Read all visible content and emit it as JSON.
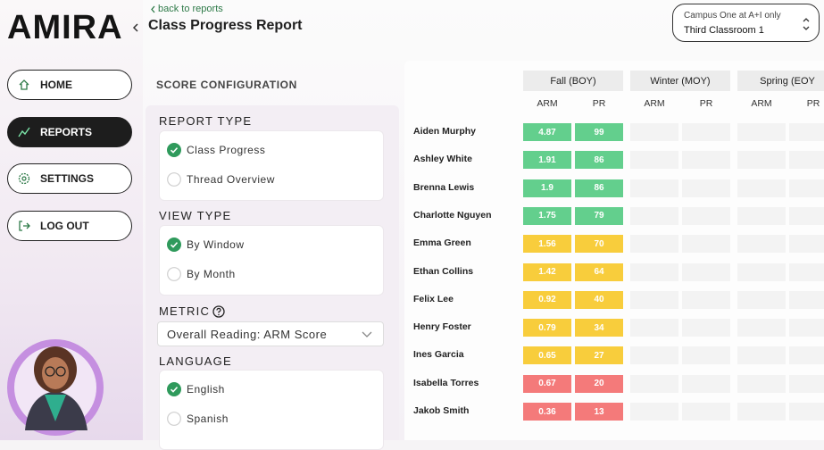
{
  "brand": "AMIRA",
  "nav": [
    {
      "label": "HOME",
      "active": false
    },
    {
      "label": "REPORTS",
      "active": true
    },
    {
      "label": "SETTINGS",
      "active": false
    },
    {
      "label": "LOG OUT",
      "active": false
    }
  ],
  "header": {
    "back": "back to reports",
    "title": "Class Progress Report"
  },
  "campus": {
    "label": "Campus One at A+I only",
    "classroom": "Third Classroom 1"
  },
  "config": {
    "heading": "SCORE CONFIGURATION",
    "report_type": {
      "label": "REPORT TYPE",
      "options": [
        {
          "text": "Class Progress",
          "checked": true
        },
        {
          "text": "Thread Overview",
          "checked": false
        }
      ]
    },
    "view_type": {
      "label": "VIEW TYPE",
      "options": [
        {
          "text": "By Window",
          "checked": true
        },
        {
          "text": "By Month",
          "checked": false
        }
      ]
    },
    "metric": {
      "label": "METRIC",
      "selected": "Overall Reading: ARM Score"
    },
    "language": {
      "label": "LANGUAGE",
      "options": [
        {
          "text": "English",
          "checked": true
        },
        {
          "text": "Spanish",
          "checked": false
        }
      ]
    }
  },
  "table": {
    "periods": [
      "Fall (BOY)",
      "Winter (MOY)",
      "Spring (EOY"
    ],
    "columns": [
      "ARM",
      "PR"
    ],
    "rows": [
      {
        "name": "Aiden Murphy",
        "arm": 4.87,
        "pr": 99,
        "color": "#63cf8d"
      },
      {
        "name": "Ashley White",
        "arm": 1.91,
        "pr": 86,
        "color": "#63cf8d"
      },
      {
        "name": "Brenna Lewis",
        "arm": 1.9,
        "pr": 86,
        "color": "#63cf8d"
      },
      {
        "name": "Charlotte Nguyen",
        "arm": 1.75,
        "pr": 79,
        "color": "#63cf8d"
      },
      {
        "name": "Emma Green",
        "arm": 1.56,
        "pr": 70,
        "color": "#f8cd3c"
      },
      {
        "name": "Ethan Collins",
        "arm": 1.42,
        "pr": 64,
        "color": "#f8cd3c"
      },
      {
        "name": "Felix Lee",
        "arm": 0.92,
        "pr": 40,
        "color": "#f8cd3c"
      },
      {
        "name": "Henry Foster",
        "arm": 0.79,
        "pr": 34,
        "color": "#f8cd3c"
      },
      {
        "name": "Ines Garcia",
        "arm": 0.65,
        "pr": 27,
        "color": "#f8cd3c"
      },
      {
        "name": "Isabella Torres",
        "arm": 0.67,
        "pr": 20,
        "color": "#f47a7a"
      },
      {
        "name": "Jakob Smith",
        "arm": 0.36,
        "pr": 13,
        "color": "#f47a7a"
      }
    ]
  }
}
